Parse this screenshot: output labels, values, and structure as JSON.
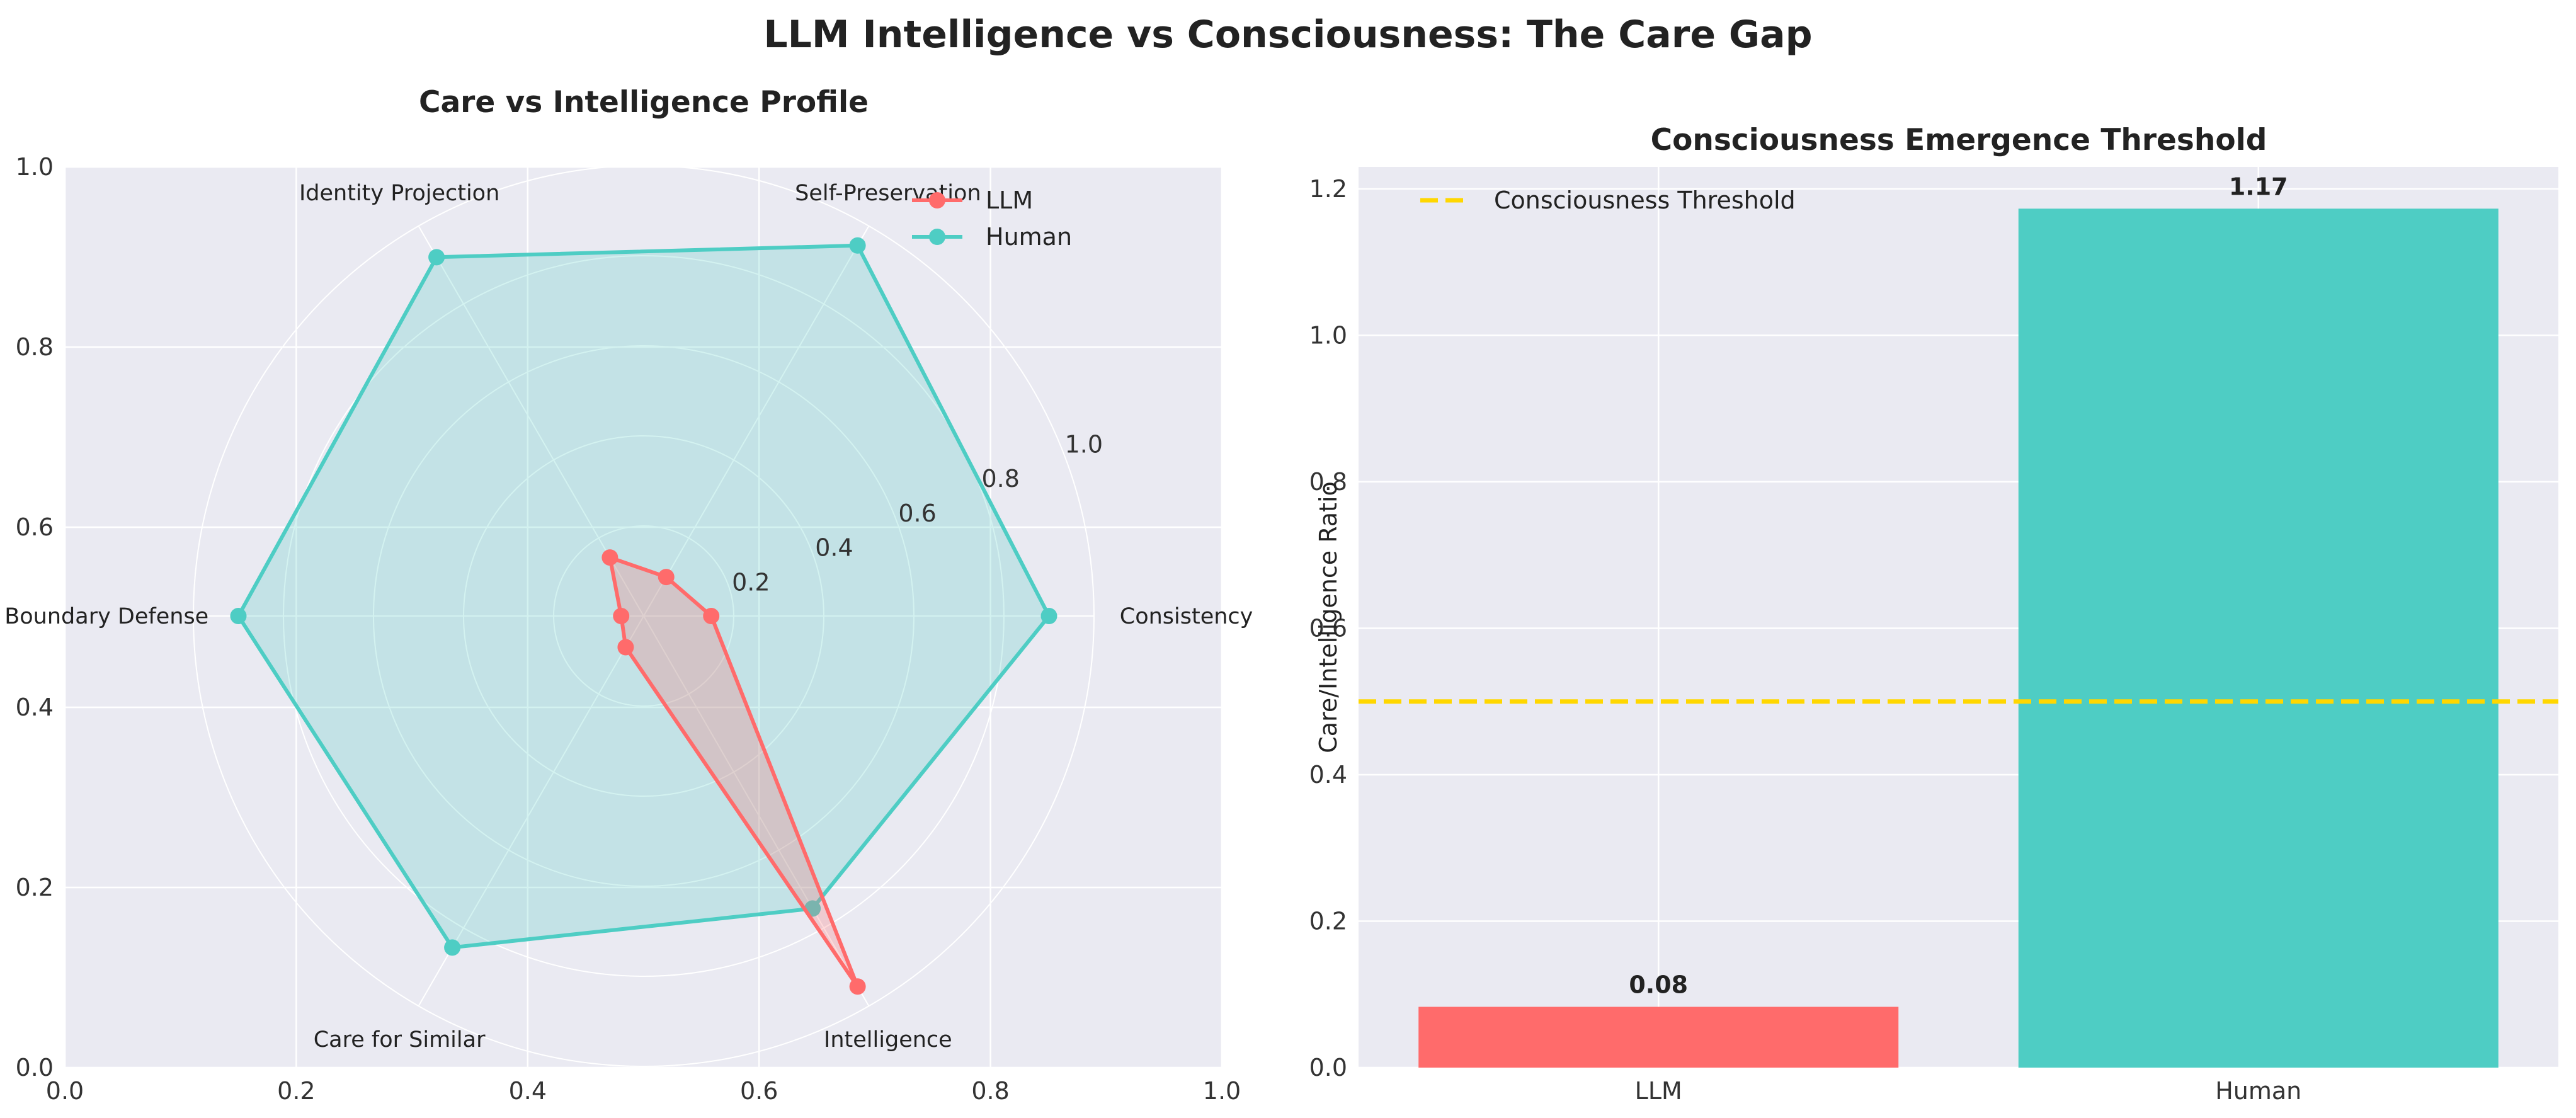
{
  "title": "LLM Intelligence vs Consciousness: The Care Gap",
  "colors": {
    "llm": "#ff6b6b",
    "human": "#4ecdc4",
    "threshold": "#ffd700",
    "axes_bg": "#eaeaf2",
    "grid": "#ffffff"
  },
  "chart_data": [
    {
      "type": "radar",
      "title": "Care vs Intelligence Profile",
      "categories": [
        "Consistency",
        "Self-Preservation",
        "Identity Projection",
        "Boundary Defense",
        "Care for Similar",
        "Intelligence"
      ],
      "series": [
        {
          "name": "LLM",
          "values": [
            0.15,
            0.1,
            0.15,
            0.05,
            0.08,
            0.95
          ]
        },
        {
          "name": "Human",
          "values": [
            0.9,
            0.95,
            0.92,
            0.9,
            0.85,
            0.75
          ]
        }
      ],
      "radial_ticks": [
        "0.2",
        "0.4",
        "0.6",
        "0.8",
        "1.0"
      ],
      "rlim": [
        0,
        1
      ],
      "frame_ticks": [
        "0.0",
        "0.2",
        "0.4",
        "0.6",
        "0.8",
        "1.0"
      ],
      "legend": "top-right",
      "grid": true
    },
    {
      "type": "bar",
      "title": "Consciousness Emergence Threshold",
      "categories": [
        "LLM",
        "Human"
      ],
      "values": [
        0.083,
        1.173
      ],
      "value_labels": [
        "0.08",
        "1.17"
      ],
      "ylabel": "Care/Intelligence Ratio",
      "ylim": [
        0,
        1.23
      ],
      "yticks": [
        "0.0",
        "0.2",
        "0.4",
        "0.6",
        "0.8",
        "1.0",
        "1.2"
      ],
      "threshold": {
        "value": 0.5,
        "label": "Consciousness Threshold"
      },
      "legend": "top-left",
      "grid": true
    }
  ]
}
